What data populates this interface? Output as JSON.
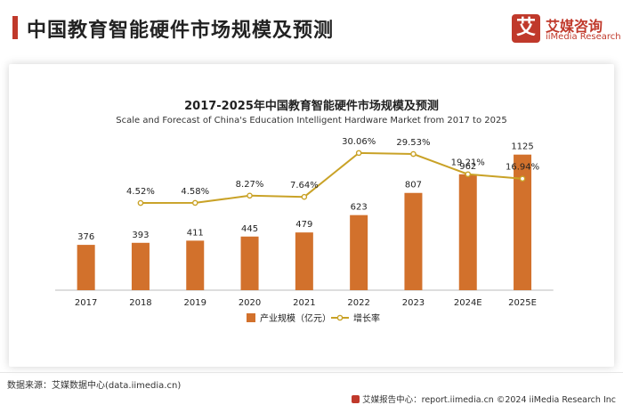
{
  "header": {
    "title": "中国教育智能硬件市场规模及预测"
  },
  "logo": {
    "mark": "艾",
    "name_cn": "艾媒咨询",
    "name_en": "iiMedia Research"
  },
  "chart_data": {
    "type": "bar",
    "title": "2017-2025年中国教育智能硬件市场规模及预测",
    "subtitle": "Scale and Forecast of China's Education Intelligent Hardware Market from 2017 to 2025",
    "categories": [
      "2017",
      "2018",
      "2019",
      "2020",
      "2021",
      "2022",
      "2023",
      "2024E",
      "2025E"
    ],
    "series": [
      {
        "name": "产业规模（亿元）",
        "type": "bar",
        "color": "#d2712c",
        "values": [
          376,
          393,
          411,
          445,
          479,
          623,
          807,
          962,
          1125
        ],
        "labels": [
          "376",
          "393",
          "411",
          "445",
          "479",
          "623",
          "807",
          "962",
          "1125"
        ]
      },
      {
        "name": "增长率",
        "type": "line",
        "color": "#c9a227",
        "values": [
          null,
          4.52,
          4.58,
          8.27,
          7.64,
          30.06,
          29.53,
          19.21,
          16.94
        ],
        "labels": [
          "",
          "4.52%",
          "4.58%",
          "8.27%",
          "7.64%",
          "30.06%",
          "29.53%",
          "19.21%",
          "16.94%"
        ]
      }
    ],
    "bar_axis_range": [
      0,
      1300
    ],
    "line_axis_range": [
      -40,
      40
    ],
    "grid": false,
    "legend_position": "bottom-center"
  },
  "footer": {
    "source": "数据来源：艾媒数据中心(data.iimedia.cn)",
    "right": "艾媒报告中心：report.iimedia.cn   ©2024  iiMedia Research  Inc"
  }
}
